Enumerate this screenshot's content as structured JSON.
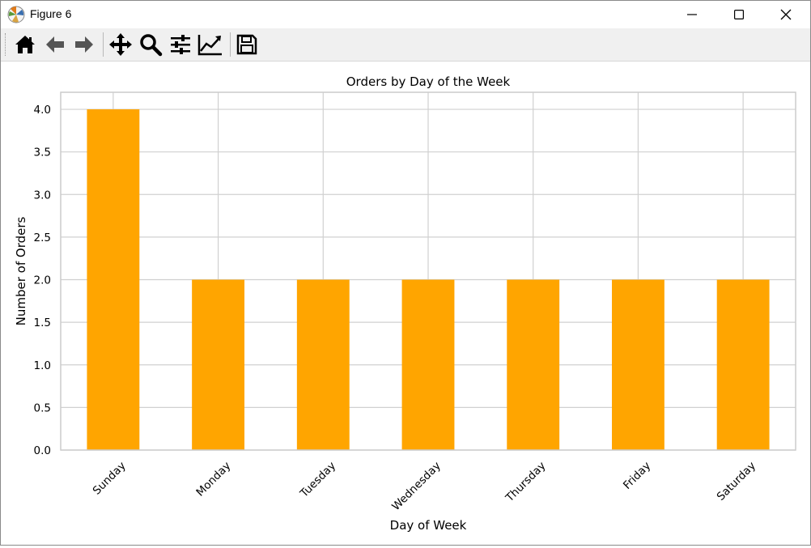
{
  "window": {
    "title": "Figure 6",
    "controls": [
      "minimize-icon",
      "maximize-icon",
      "close-icon"
    ]
  },
  "toolbar": {
    "buttons": [
      {
        "name": "home",
        "icon": "home-icon"
      },
      {
        "name": "back",
        "icon": "arrow-left-icon"
      },
      {
        "name": "forward",
        "icon": "arrow-right-icon"
      },
      {
        "name": "pan",
        "icon": "move-icon"
      },
      {
        "name": "zoom",
        "icon": "magnifier-icon"
      },
      {
        "name": "configure-subplots",
        "icon": "sliders-icon"
      },
      {
        "name": "edit-axes",
        "icon": "line-chart-icon"
      },
      {
        "name": "save",
        "icon": "floppy-disk-icon"
      }
    ]
  },
  "chart_data": {
    "type": "bar",
    "title": "Orders by Day of the Week",
    "xlabel": "Day of Week",
    "ylabel": "Number of Orders",
    "categories": [
      "Sunday",
      "Monday",
      "Tuesday",
      "Wednesday",
      "Thursday",
      "Friday",
      "Saturday"
    ],
    "values": [
      4,
      2,
      2,
      2,
      2,
      2,
      2
    ],
    "ylim": [
      0,
      4.2
    ],
    "yticks": [
      "0.0",
      "0.5",
      "1.0",
      "1.5",
      "2.0",
      "2.5",
      "3.0",
      "3.5",
      "4.0"
    ],
    "bar_color": "#ffa500",
    "grid": true,
    "legend": false
  }
}
